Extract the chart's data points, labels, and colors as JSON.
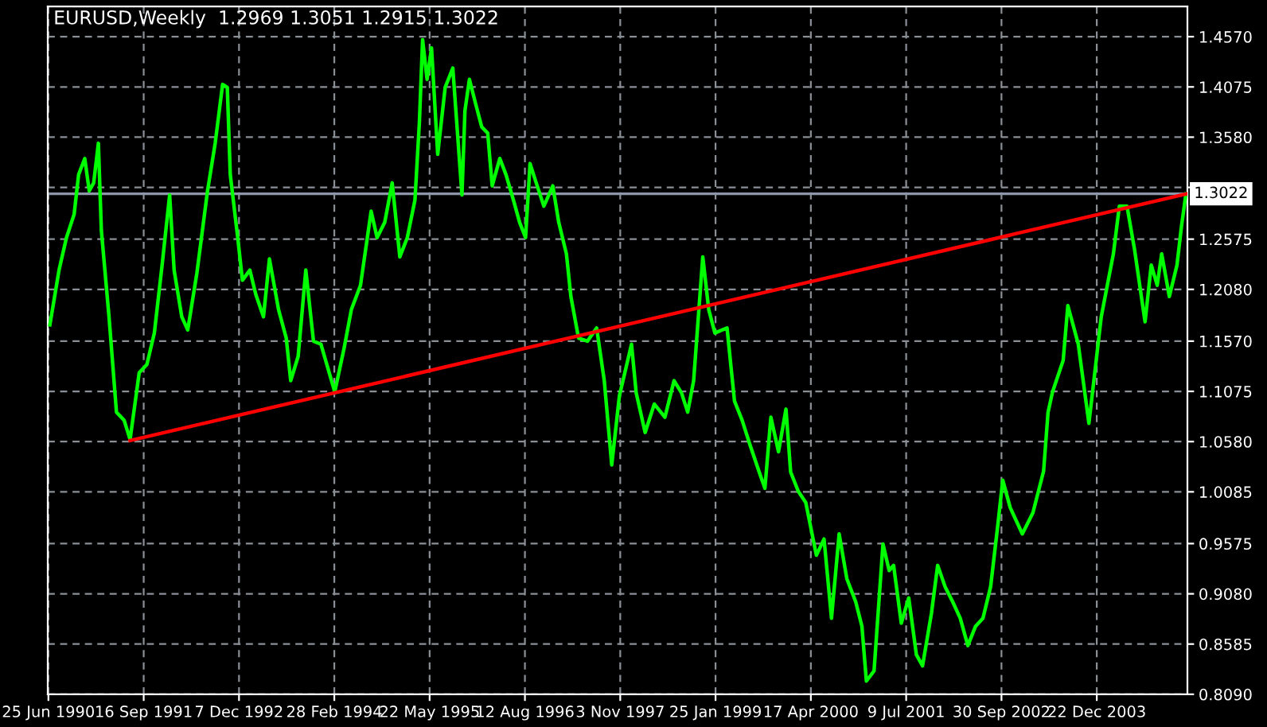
{
  "chart_data": {
    "type": "line",
    "title": "EURUSD,Weekly  1.2969 1.3051 1.2915 1.3022",
    "series": [
      {
        "color": "#00ff00",
        "x": [
          "1990-07-02",
          "1990-08-14",
          "1990-09-18",
          "1990-10-24",
          "1990-11-14",
          "1990-12-13",
          "1991-01-03",
          "1991-01-24",
          "1991-02-15",
          "1991-03-01",
          "1991-04-06",
          "1991-05-11",
          "1991-06-16",
          "1991-07-14",
          "1991-08-26",
          "1991-10-01",
          "1991-11-05",
          "1991-12-11",
          "1992-01-16",
          "1992-02-06",
          "1992-03-13",
          "1992-04-10",
          "1992-05-23",
          "1992-07-12",
          "1992-08-17",
          "1992-09-21",
          "1992-10-13",
          "1992-10-27",
          "1992-12-01",
          "1992-12-23",
          "1993-01-27",
          "1993-02-24",
          "1993-04-01",
          "1993-04-29",
          "1993-06-11",
          "1993-07-17",
          "1993-08-07",
          "1993-09-11",
          "1993-10-17",
          "1993-11-22",
          "1993-12-27",
          "1994-03-02",
          "1994-04-14",
          "1994-05-19",
          "1994-07-01",
          "1994-08-20",
          "1994-09-17",
          "1994-10-23",
          "1994-11-27",
          "1995-01-02",
          "1995-02-06",
          "1995-03-14",
          "1995-04-04",
          "1995-04-19",
          "1995-05-10",
          "1995-05-31",
          "1995-06-29",
          "1995-08-03",
          "1995-09-08",
          "1995-10-21",
          "1995-11-04",
          "1995-11-25",
          "1995-12-24",
          "1996-01-22",
          "1996-02-19",
          "1996-03-11",
          "1996-04-16",
          "1996-05-15",
          "1996-06-19",
          "1996-07-18",
          "1996-08-15",
          "1996-09-05",
          "1996-10-04",
          "1996-11-09",
          "1996-12-21",
          "1997-01-18",
          "1997-02-23",
          "1997-03-16",
          "1997-04-21",
          "1997-06-02",
          "1997-07-15",
          "1997-08-20",
          "1997-09-24",
          "1997-10-30",
          "1997-12-26",
          "1998-01-17",
          "1998-02-28",
          "1998-04-12",
          "1998-06-01",
          "1998-07-14",
          "1998-08-18",
          "1998-09-16",
          "1998-10-14",
          "1998-11-26",
          "1998-12-24",
          "1999-01-22",
          "1999-03-20",
          "1999-04-24",
          "1999-05-30",
          "1999-07-04",
          "1999-08-23",
          "1999-09-14",
          "1999-10-12",
          "1999-11-17",
          "1999-12-22",
          "2000-01-13",
          "2000-02-18",
          "2000-03-24",
          "2000-05-13",
          "2000-06-18",
          "2000-07-23",
          "2000-08-28",
          "2000-10-03",
          "2000-11-14",
          "2000-12-13",
          "2001-01-03",
          "2001-02-08",
          "2001-03-22",
          "2001-04-20",
          "2001-05-11",
          "2001-06-16",
          "2001-07-21",
          "2001-08-26",
          "2001-09-24",
          "2001-11-05",
          "2001-12-04",
          "2002-01-08",
          "2002-02-13",
          "2002-03-20",
          "2002-04-25",
          "2002-05-31",
          "2002-07-05",
          "2002-08-10",
          "2002-09-14",
          "2002-10-06",
          "2002-11-10",
          "2003-01-06",
          "2003-02-25",
          "2003-04-16",
          "2003-05-07",
          "2003-05-28",
          "2003-07-17",
          "2003-08-08",
          "2003-09-26",
          "2003-11-15",
          "2004-01-12",
          "2004-03-09",
          "2004-04-06",
          "2004-05-12",
          "2004-06-16",
          "2004-07-22",
          "2004-08-05",
          "2004-09-03",
          "2004-10-01",
          "2004-10-22",
          "2004-11-27",
          "2005-01-02",
          "2005-01-23",
          "2005-02-13"
        ],
        "values": [
          1.173,
          1.227,
          1.259,
          1.282,
          1.321,
          1.337,
          1.305,
          1.313,
          1.352,
          1.266,
          1.181,
          1.087,
          1.079,
          1.06,
          1.126,
          1.134,
          1.165,
          1.231,
          1.301,
          1.227,
          1.181,
          1.168,
          1.224,
          1.305,
          1.352,
          1.41,
          1.407,
          1.321,
          1.259,
          1.217,
          1.227,
          1.203,
          1.181,
          1.238,
          1.188,
          1.16,
          1.118,
          1.142,
          1.227,
          1.157,
          1.154,
          1.107,
          1.149,
          1.188,
          1.212,
          1.285,
          1.259,
          1.274,
          1.313,
          1.24,
          1.259,
          1.296,
          1.373,
          1.454,
          1.415,
          1.446,
          1.341,
          1.407,
          1.426,
          1.301,
          1.384,
          1.415,
          1.391,
          1.368,
          1.362,
          1.31,
          1.337,
          1.321,
          1.296,
          1.274,
          1.259,
          1.332,
          1.313,
          1.29,
          1.31,
          1.274,
          1.243,
          1.201,
          1.16,
          1.157,
          1.17,
          1.118,
          1.035,
          1.103,
          1.154,
          1.106,
          1.067,
          1.095,
          1.082,
          1.118,
          1.106,
          1.087,
          1.118,
          1.24,
          1.188,
          1.165,
          1.17,
          1.098,
          1.079,
          1.056,
          1.025,
          1.012,
          1.082,
          1.048,
          1.09,
          1.028,
          1.009,
          0.998,
          0.946,
          0.962,
          0.884,
          0.967,
          0.923,
          0.9,
          0.876,
          0.822,
          0.832,
          0.957,
          0.931,
          0.936,
          0.879,
          0.904,
          0.848,
          0.837,
          0.889,
          0.936,
          0.915,
          0.9,
          0.884,
          0.857,
          0.876,
          0.884,
          0.915,
          0.978,
          1.02,
          0.993,
          0.967,
          0.988,
          1.029,
          1.087,
          1.107,
          1.138,
          1.192,
          1.154,
          1.076,
          1.181,
          1.243,
          1.29,
          1.29,
          1.248,
          1.196,
          1.176,
          1.232,
          1.212,
          1.243,
          1.201,
          1.232,
          1.27,
          1.302
        ]
      },
      {
        "color": "#ff0000",
        "x": [
          "1991-07-14",
          "2005-02-13"
        ],
        "values": [
          1.059,
          1.302
        ]
      }
    ],
    "xlim": [
      "1990-06-22",
      "2005-02-20"
    ],
    "xticks": [
      {
        "value": "1990-06-25",
        "label": "25 Jun 1990"
      },
      {
        "value": "1991-09-16",
        "label": "16 Sep 1991"
      },
      {
        "value": "1992-12-07",
        "label": "7 Dec 1992"
      },
      {
        "value": "1994-02-28",
        "label": "28 Feb 1994"
      },
      {
        "value": "1995-05-22",
        "label": "22 May 1995"
      },
      {
        "value": "1996-08-12",
        "label": "12 Aug 1996"
      },
      {
        "value": "1997-11-03",
        "label": "3 Nov 1997"
      },
      {
        "value": "1999-01-25",
        "label": "25 Jan 1999"
      },
      {
        "value": "2000-04-17",
        "label": "17 Apr 2000"
      },
      {
        "value": "2001-07-09",
        "label": "9 Jul 2001"
      },
      {
        "value": "2002-09-30",
        "label": "30 Sep 2002"
      },
      {
        "value": "2003-12-22",
        "label": "22 Dec 2003"
      }
    ],
    "ylim": [
      0.809,
      1.4867
    ],
    "yticks": [
      {
        "value": 1.457,
        "label": "1.4570"
      },
      {
        "value": 1.4075,
        "label": "1.4075"
      },
      {
        "value": 1.358,
        "label": "1.3580"
      },
      {
        "value": 1.3085,
        "label": null
      },
      {
        "value": 1.2575,
        "label": "1.2575"
      },
      {
        "value": 1.208,
        "label": "1.2080"
      },
      {
        "value": 1.157,
        "label": "1.1570"
      },
      {
        "value": 1.1075,
        "label": "1.1075"
      },
      {
        "value": 1.058,
        "label": "1.0580"
      },
      {
        "value": 1.0085,
        "label": "1.0085"
      },
      {
        "value": 0.9575,
        "label": "0.9575"
      },
      {
        "value": 0.908,
        "label": "0.9080"
      },
      {
        "value": 0.8585,
        "label": "0.8585"
      },
      {
        "value": 0.809,
        "label": "0.8090"
      }
    ],
    "ref_lines": [
      {
        "axis": "y",
        "value": 1.3022,
        "label": "1.3022",
        "color": "#8c96a8",
        "line_style": "solid"
      }
    ],
    "grid": true,
    "line_style": "solid",
    "marker": "none",
    "legend": false
  }
}
